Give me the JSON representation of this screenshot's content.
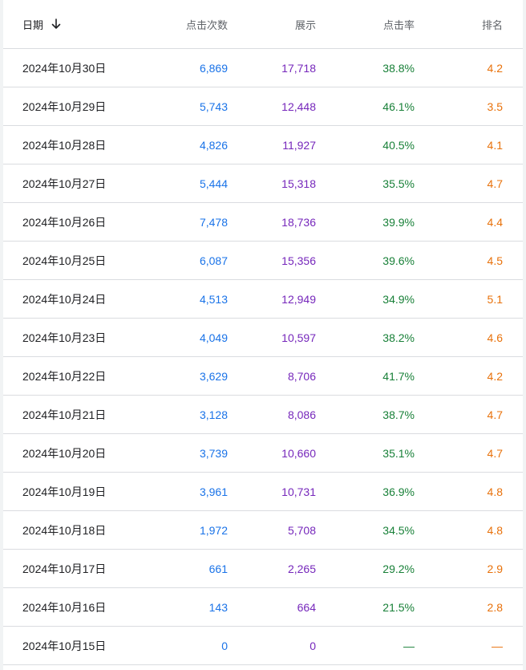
{
  "table": {
    "headers": {
      "date": "日期",
      "clicks": "点击次数",
      "impressions": "展示",
      "ctr": "点击率",
      "position": "排名"
    },
    "sort_icon": "arrow-down-icon",
    "colors": {
      "clicks": "#1a73e8",
      "impressions": "#7627bb",
      "ctr": "#188038",
      "position": "#e8710a"
    },
    "rows": [
      {
        "date": "2024年10月30日",
        "clicks": "6,869",
        "impressions": "17,718",
        "ctr": "38.8%",
        "position": "4.2"
      },
      {
        "date": "2024年10月29日",
        "clicks": "5,743",
        "impressions": "12,448",
        "ctr": "46.1%",
        "position": "3.5"
      },
      {
        "date": "2024年10月28日",
        "clicks": "4,826",
        "impressions": "11,927",
        "ctr": "40.5%",
        "position": "4.1"
      },
      {
        "date": "2024年10月27日",
        "clicks": "5,444",
        "impressions": "15,318",
        "ctr": "35.5%",
        "position": "4.7"
      },
      {
        "date": "2024年10月26日",
        "clicks": "7,478",
        "impressions": "18,736",
        "ctr": "39.9%",
        "position": "4.4"
      },
      {
        "date": "2024年10月25日",
        "clicks": "6,087",
        "impressions": "15,356",
        "ctr": "39.6%",
        "position": "4.5"
      },
      {
        "date": "2024年10月24日",
        "clicks": "4,513",
        "impressions": "12,949",
        "ctr": "34.9%",
        "position": "5.1"
      },
      {
        "date": "2024年10月23日",
        "clicks": "4,049",
        "impressions": "10,597",
        "ctr": "38.2%",
        "position": "4.6"
      },
      {
        "date": "2024年10月22日",
        "clicks": "3,629",
        "impressions": "8,706",
        "ctr": "41.7%",
        "position": "4.2"
      },
      {
        "date": "2024年10月21日",
        "clicks": "3,128",
        "impressions": "8,086",
        "ctr": "38.7%",
        "position": "4.7"
      },
      {
        "date": "2024年10月20日",
        "clicks": "3,739",
        "impressions": "10,660",
        "ctr": "35.1%",
        "position": "4.7"
      },
      {
        "date": "2024年10月19日",
        "clicks": "3,961",
        "impressions": "10,731",
        "ctr": "36.9%",
        "position": "4.8"
      },
      {
        "date": "2024年10月18日",
        "clicks": "1,972",
        "impressions": "5,708",
        "ctr": "34.5%",
        "position": "4.8"
      },
      {
        "date": "2024年10月17日",
        "clicks": "661",
        "impressions": "2,265",
        "ctr": "29.2%",
        "position": "2.9"
      },
      {
        "date": "2024年10月16日",
        "clicks": "143",
        "impressions": "664",
        "ctr": "21.5%",
        "position": "2.8"
      },
      {
        "date": "2024年10月15日",
        "clicks": "0",
        "impressions": "0",
        "ctr": "—",
        "position": "—"
      }
    ]
  }
}
